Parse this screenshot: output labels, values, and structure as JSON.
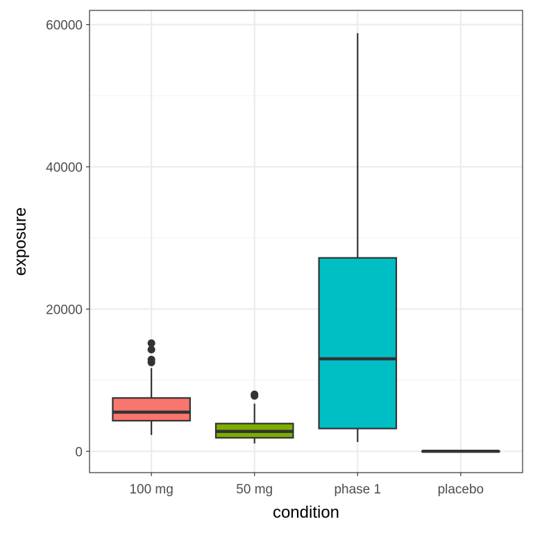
{
  "chart_data": {
    "type": "box",
    "title": "",
    "xlabel": "condition",
    "ylabel": "exposure",
    "ylim": [
      -3000,
      62000
    ],
    "y_ticks": [
      0,
      20000,
      40000,
      60000
    ],
    "y_tick_labels": [
      "0",
      "20000",
      "40000",
      "60000"
    ],
    "grid": true,
    "legend": "none",
    "categories": [
      "100 mg",
      "50 mg",
      "phase 1",
      "placebo"
    ],
    "boxes": [
      {
        "category": "100 mg",
        "color": "#F8766D",
        "whisker_low": 2300,
        "q1": 4300,
        "median": 5500,
        "q3": 7500,
        "whisker_high": 11700,
        "outliers": [
          12500,
          12900,
          14300,
          15200
        ]
      },
      {
        "category": "50 mg",
        "color": "#7CAE00",
        "whisker_low": 1100,
        "q1": 1900,
        "median": 2800,
        "q3": 3900,
        "whisker_high": 6700,
        "outliers": [
          7800,
          8000
        ]
      },
      {
        "category": "phase 1",
        "color": "#00BFC4",
        "whisker_low": 1300,
        "q1": 3200,
        "median": 13000,
        "q3": 27200,
        "whisker_high": 58800,
        "outliers": []
      },
      {
        "category": "placebo",
        "color": "#C77CFF",
        "whisker_low": 0,
        "q1": 0,
        "median": 0,
        "q3": 0,
        "whisker_high": 0,
        "outliers": []
      }
    ]
  }
}
